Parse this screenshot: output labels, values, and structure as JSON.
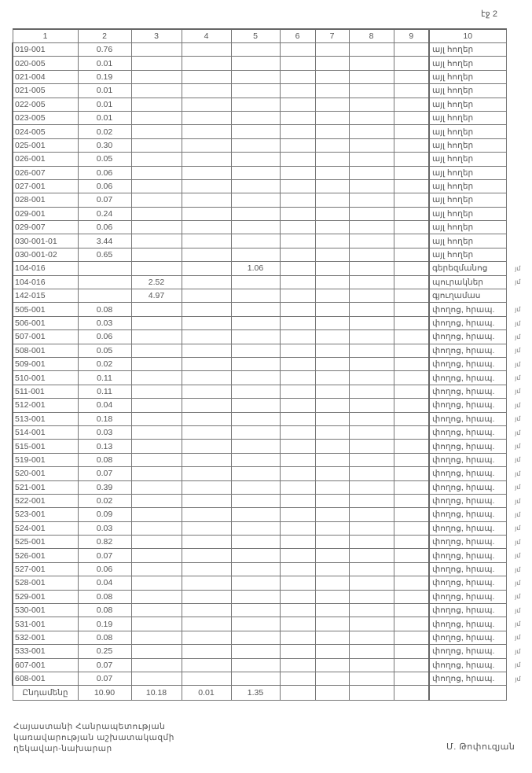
{
  "page_label": "էջ 2",
  "columns": [
    "1",
    "2",
    "3",
    "4",
    "5",
    "6",
    "7",
    "8",
    "9",
    "10"
  ],
  "rows": [
    {
      "c1": "019-001",
      "c2": "0.76",
      "c3": "",
      "c5": "",
      "c10": "այլ հողեր",
      "mark": ""
    },
    {
      "c1": "020-005",
      "c2": "0.01",
      "c3": "",
      "c5": "",
      "c10": "այլ հողեր",
      "mark": ""
    },
    {
      "c1": "021-004",
      "c2": "0.19",
      "c3": "",
      "c5": "",
      "c10": "այլ հողեր",
      "mark": ""
    },
    {
      "c1": "021-005",
      "c2": "0.01",
      "c3": "",
      "c5": "",
      "c10": "այլ հողեր",
      "mark": ""
    },
    {
      "c1": "022-005",
      "c2": "0.01",
      "c3": "",
      "c5": "",
      "c10": "այլ հողեր",
      "mark": ""
    },
    {
      "c1": "023-005",
      "c2": "0.01",
      "c3": "",
      "c5": "",
      "c10": "այլ հողեր",
      "mark": ""
    },
    {
      "c1": "024-005",
      "c2": "0.02",
      "c3": "",
      "c5": "",
      "c10": "այլ հողեր",
      "mark": ""
    },
    {
      "c1": "025-001",
      "c2": "0.30",
      "c3": "",
      "c5": "",
      "c10": "այլ հողեր",
      "mark": ""
    },
    {
      "c1": "026-001",
      "c2": "0.05",
      "c3": "",
      "c5": "",
      "c10": "այլ հողեր",
      "mark": ""
    },
    {
      "c1": "026-007",
      "c2": "0.06",
      "c3": "",
      "c5": "",
      "c10": "այլ հողեր",
      "mark": ""
    },
    {
      "c1": "027-001",
      "c2": "0.06",
      "c3": "",
      "c5": "",
      "c10": "այլ հողեր",
      "mark": ""
    },
    {
      "c1": "028-001",
      "c2": "0.07",
      "c3": "",
      "c5": "",
      "c10": "այլ հողեր",
      "mark": ""
    },
    {
      "c1": "029-001",
      "c2": "0.24",
      "c3": "",
      "c5": "",
      "c10": "այլ հողեր",
      "mark": ""
    },
    {
      "c1": "029-007",
      "c2": "0.06",
      "c3": "",
      "c5": "",
      "c10": "այլ հողեր",
      "mark": ""
    },
    {
      "c1": "030-001-01",
      "c2": "3.44",
      "c3": "",
      "c5": "",
      "c10": "այլ հողեր",
      "mark": ""
    },
    {
      "c1": "030-001-02",
      "c2": "0.65",
      "c3": "",
      "c5": "",
      "c10": "այլ հողեր",
      "mark": ""
    },
    {
      "c1": "104-016",
      "c2": "",
      "c3": "",
      "c5": "1.06",
      "c10": "գերեզմանոց",
      "mark": "յմ"
    },
    {
      "c1": "104-016",
      "c2": "",
      "c3": "2.52",
      "c5": "",
      "c10": "պուրակներ",
      "mark": "յմ"
    },
    {
      "c1": "142-015",
      "c2": "",
      "c3": "4.97",
      "c5": "",
      "c10": "գյուղամաս",
      "mark": ""
    },
    {
      "c1": "505-001",
      "c2": "0.08",
      "c3": "",
      "c5": "",
      "c10": "փողոց, հրապ.",
      "mark": "յմ"
    },
    {
      "c1": "506-001",
      "c2": "0.03",
      "c3": "",
      "c5": "",
      "c10": "փողոց, հրապ.",
      "mark": "յմ"
    },
    {
      "c1": "507-001",
      "c2": "0.06",
      "c3": "",
      "c5": "",
      "c10": "փողոց, հրապ.",
      "mark": "յմ"
    },
    {
      "c1": "508-001",
      "c2": "0.05",
      "c3": "",
      "c5": "",
      "c10": "փողոց, հրապ.",
      "mark": "յմ"
    },
    {
      "c1": "509-001",
      "c2": "0.02",
      "c3": "",
      "c5": "",
      "c10": "փողոց, հրապ.",
      "mark": "յմ"
    },
    {
      "c1": "510-001",
      "c2": "0.11",
      "c3": "",
      "c5": "",
      "c10": "փողոց, հրապ.",
      "mark": "յմ"
    },
    {
      "c1": "511-001",
      "c2": "0.11",
      "c3": "",
      "c5": "",
      "c10": "փողոց, հրապ.",
      "mark": "յմ"
    },
    {
      "c1": "512-001",
      "c2": "0.04",
      "c3": "",
      "c5": "",
      "c10": "փողոց, հրապ.",
      "mark": "յմ"
    },
    {
      "c1": "513-001",
      "c2": "0.18",
      "c3": "",
      "c5": "",
      "c10": "փողոց, հրապ.",
      "mark": "յմ"
    },
    {
      "c1": "514-001",
      "c2": "0.03",
      "c3": "",
      "c5": "",
      "c10": "փողոց, հրապ.",
      "mark": "յմ"
    },
    {
      "c1": "515-001",
      "c2": "0.13",
      "c3": "",
      "c5": "",
      "c10": "փողոց, հրապ.",
      "mark": "յմ"
    },
    {
      "c1": "519-001",
      "c2": "0.08",
      "c3": "",
      "c5": "",
      "c10": "փողոց, հրապ.",
      "mark": "յմ"
    },
    {
      "c1": "520-001",
      "c2": "0.07",
      "c3": "",
      "c5": "",
      "c10": "փողոց, հրապ.",
      "mark": "յմ"
    },
    {
      "c1": "521-001",
      "c2": "0.39",
      "c3": "",
      "c5": "",
      "c10": "փողոց, հրապ.",
      "mark": "յմ"
    },
    {
      "c1": "522-001",
      "c2": "0.02",
      "c3": "",
      "c5": "",
      "c10": "փողոց, հրապ.",
      "mark": "յմ"
    },
    {
      "c1": "523-001",
      "c2": "0.09",
      "c3": "",
      "c5": "",
      "c10": "փողոց, հրապ.",
      "mark": "յմ"
    },
    {
      "c1": "524-001",
      "c2": "0.03",
      "c3": "",
      "c5": "",
      "c10": "փողոց, հրապ.",
      "mark": "յմ"
    },
    {
      "c1": "525-001",
      "c2": "0.82",
      "c3": "",
      "c5": "",
      "c10": "փողոց, հրապ.",
      "mark": "յմ"
    },
    {
      "c1": "526-001",
      "c2": "0.07",
      "c3": "",
      "c5": "",
      "c10": "փողոց, հրապ.",
      "mark": "յմ"
    },
    {
      "c1": "527-001",
      "c2": "0.06",
      "c3": "",
      "c5": "",
      "c10": "փողոց, հրապ.",
      "mark": "յմ"
    },
    {
      "c1": "528-001",
      "c2": "0.04",
      "c3": "",
      "c5": "",
      "c10": "փողոց, հրապ.",
      "mark": "յմ"
    },
    {
      "c1": "529-001",
      "c2": "0.08",
      "c3": "",
      "c5": "",
      "c10": "փողոց, հրապ.",
      "mark": "յմ"
    },
    {
      "c1": "530-001",
      "c2": "0.08",
      "c3": "",
      "c5": "",
      "c10": "փողոց, հրապ.",
      "mark": "յմ"
    },
    {
      "c1": "531-001",
      "c2": "0.19",
      "c3": "",
      "c5": "",
      "c10": "փողոց, հրապ.",
      "mark": "յմ"
    },
    {
      "c1": "532-001",
      "c2": "0.08",
      "c3": "",
      "c5": "",
      "c10": "փողոց, հրապ.",
      "mark": "յմ"
    },
    {
      "c1": "533-001",
      "c2": "0.25",
      "c3": "",
      "c5": "",
      "c10": "փողոց, հրապ.",
      "mark": "յմ"
    },
    {
      "c1": "607-001",
      "c2": "0.07",
      "c3": "",
      "c5": "",
      "c10": "փողոց, հրապ.",
      "mark": "յմ"
    },
    {
      "c1": "608-001",
      "c2": "0.07",
      "c3": "",
      "c5": "",
      "c10": "փողոց, հրապ.",
      "mark": "յմ"
    }
  ],
  "total": {
    "label": "Ընդամենը",
    "c2": "10.90",
    "c3": "10.18",
    "c4": "0.01",
    "c5": "1.35"
  },
  "footer": {
    "position_lines": [
      "Հայաստանի Հանրապետության",
      "կառավարության աշխատակազմի",
      "ղեկավար-նախարար"
    ],
    "signatory": "Մ. Թոփուզյան"
  }
}
